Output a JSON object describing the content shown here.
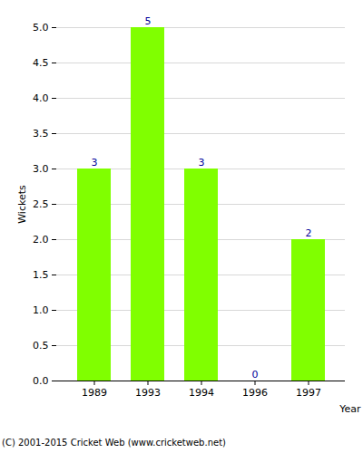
{
  "chart_data": {
    "type": "bar",
    "y_label": "Wickets",
    "x_label": "Year",
    "caption": "(C) 2001-2015 Cricket Web (www.cricketweb.net)",
    "categories": [
      "1989",
      "1993",
      "1994",
      "1996",
      "1997"
    ],
    "values": [
      3,
      5,
      3,
      0,
      2
    ],
    "color": "#80ff00",
    "ylim": [
      0,
      5
    ],
    "yticks": [
      {
        "value": 0,
        "label": "0.0"
      },
      {
        "value": 0.5,
        "label": "0.5"
      },
      {
        "value": 1,
        "label": "1.0"
      },
      {
        "value": 1.5,
        "label": "1.5"
      },
      {
        "value": 2,
        "label": "2.0"
      },
      {
        "value": 2.5,
        "label": "2.5"
      },
      {
        "value": 3,
        "label": "3.0"
      },
      {
        "value": 3.5,
        "label": "3.5"
      },
      {
        "value": 4,
        "label": "4.0"
      },
      {
        "value": 4.5,
        "label": "4.5"
      },
      {
        "value": 5,
        "label": "5.0"
      }
    ],
    "grid": true,
    "data_labels": true
  }
}
